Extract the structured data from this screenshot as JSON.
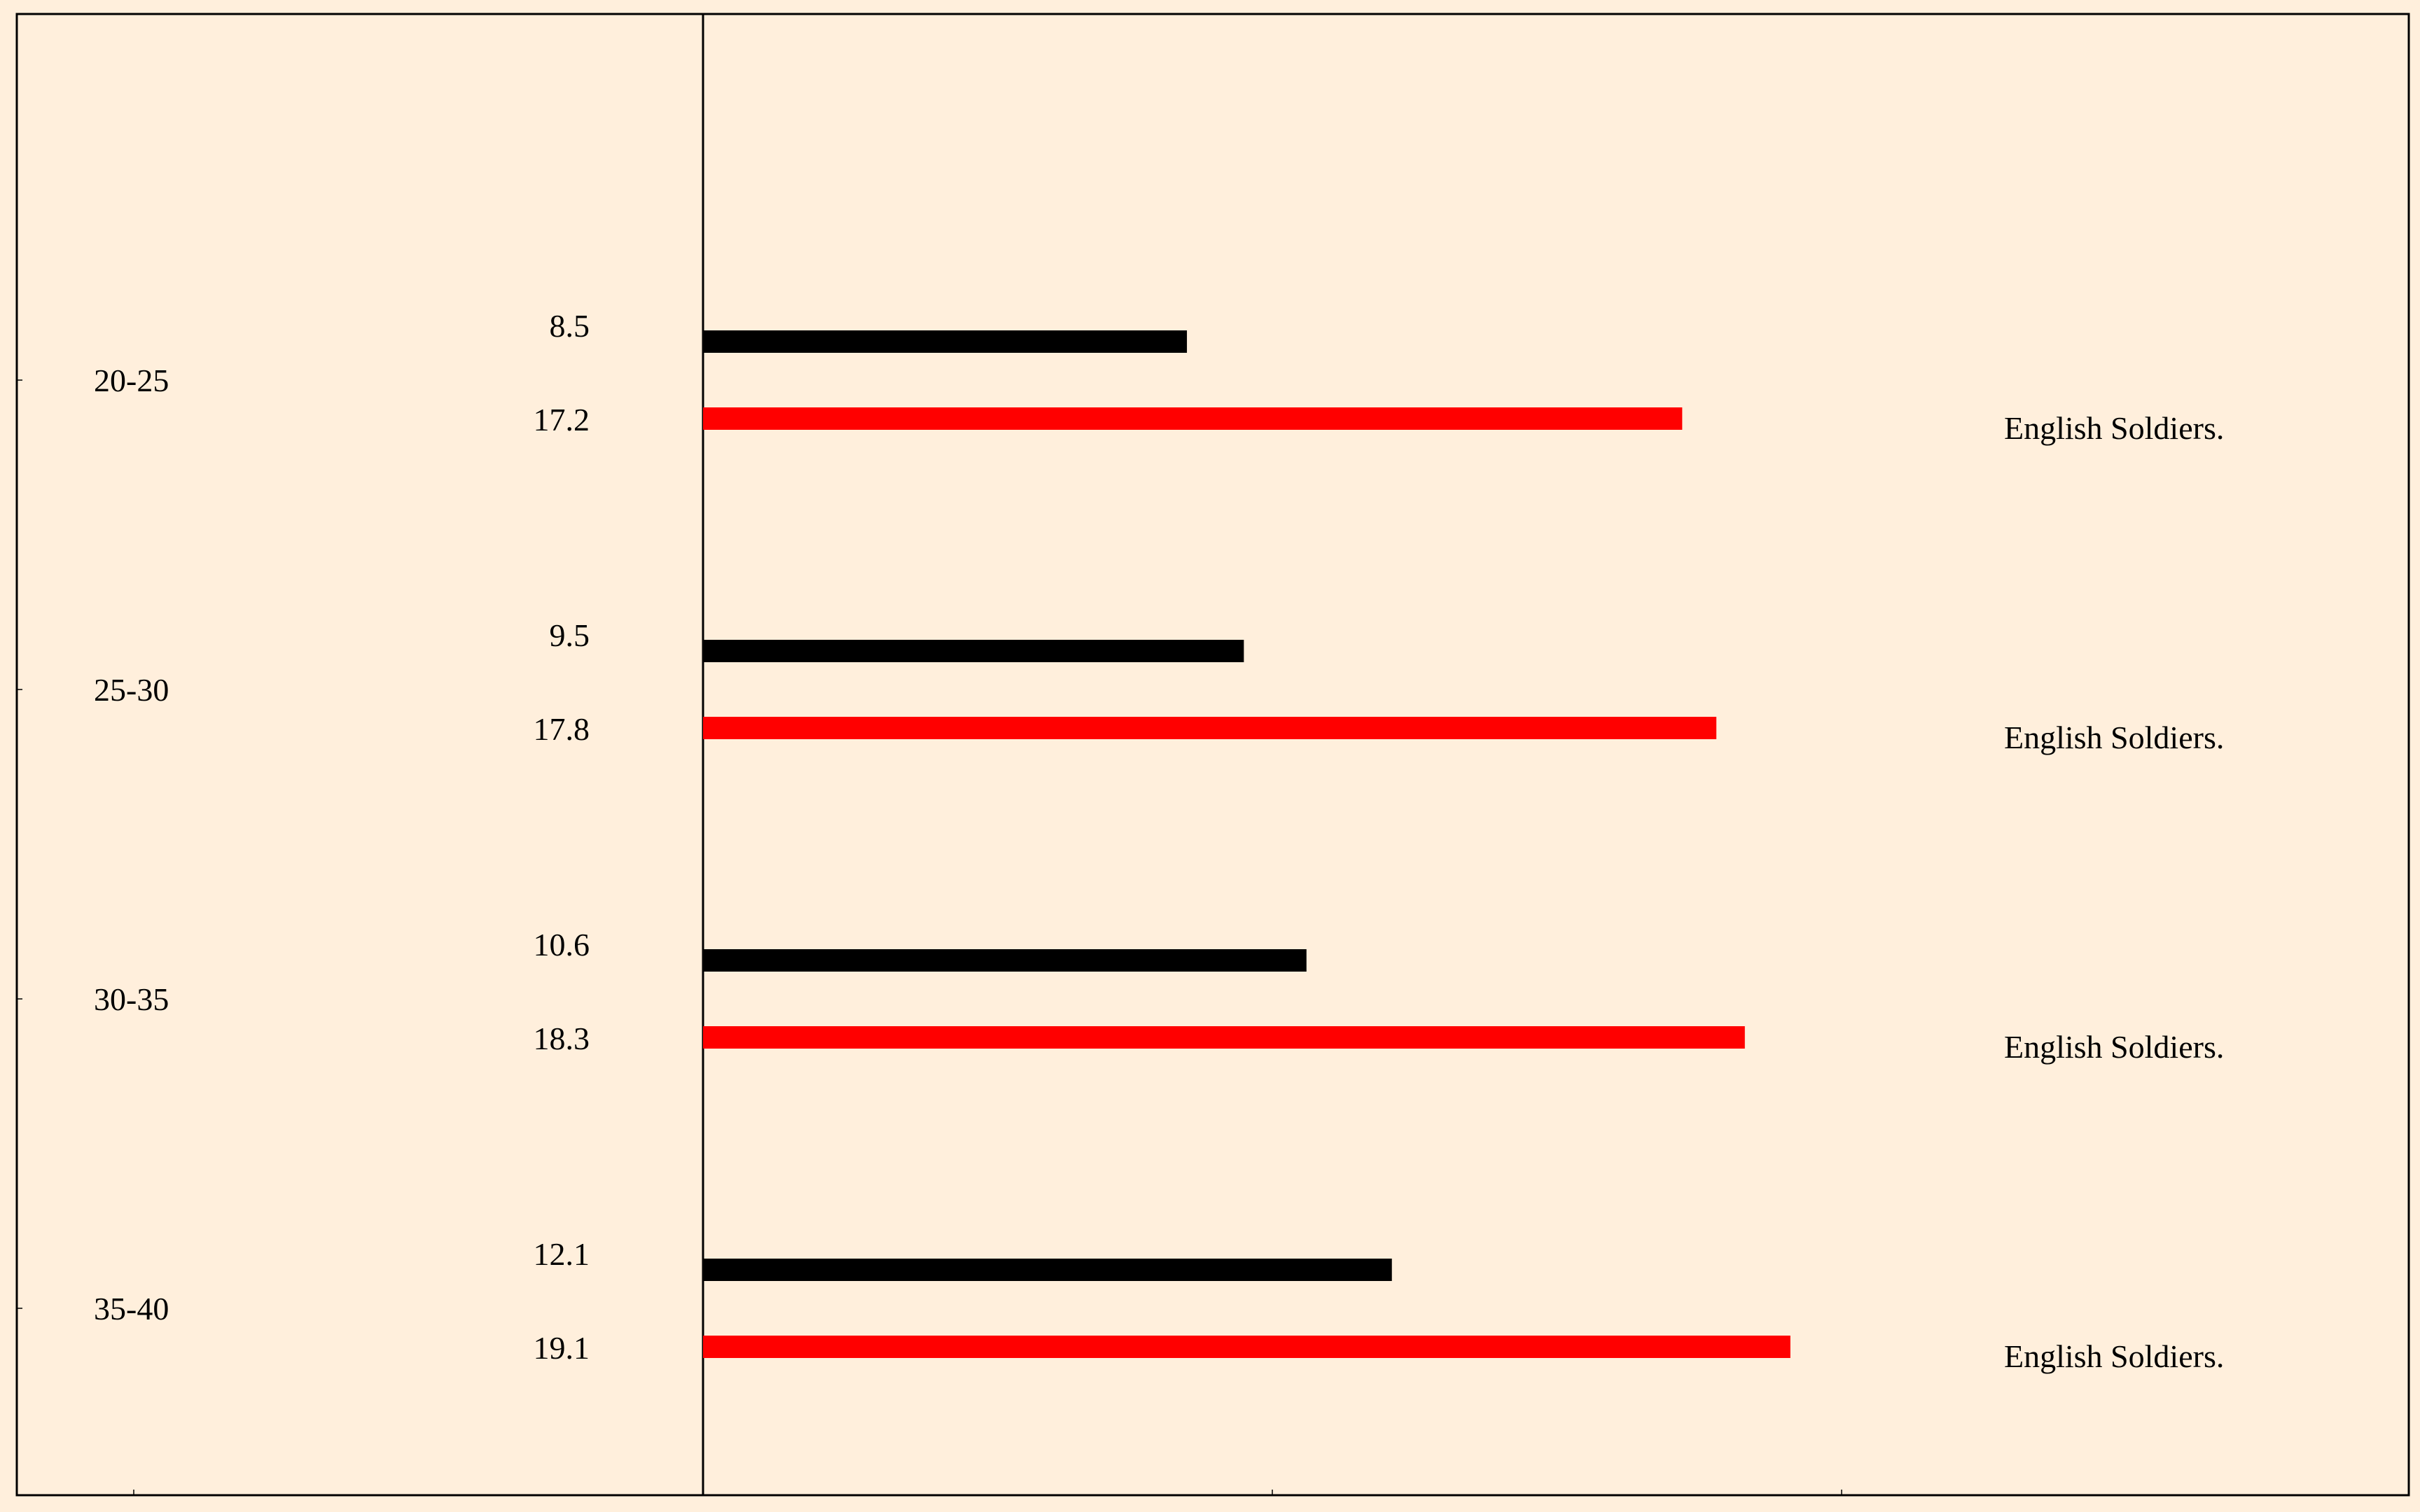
{
  "chart_data": {
    "type": "bar",
    "orientation": "horizontal",
    "categories": [
      "20-25",
      "25-30",
      "30-35",
      "35-40"
    ],
    "series": [
      {
        "values": [
          8.5,
          9.5,
          10.6,
          12.1
        ]
      },
      {
        "name": "English Soldiers.",
        "values": [
          17.2,
          17.8,
          18.3,
          19.1
        ]
      }
    ],
    "xlim": [
      -10,
      30
    ],
    "colors": {
      "series0": "#000000",
      "series1": "#ff0000",
      "background": "#ffefdc",
      "frame": "#000000"
    },
    "grid": false,
    "legend": "none"
  }
}
